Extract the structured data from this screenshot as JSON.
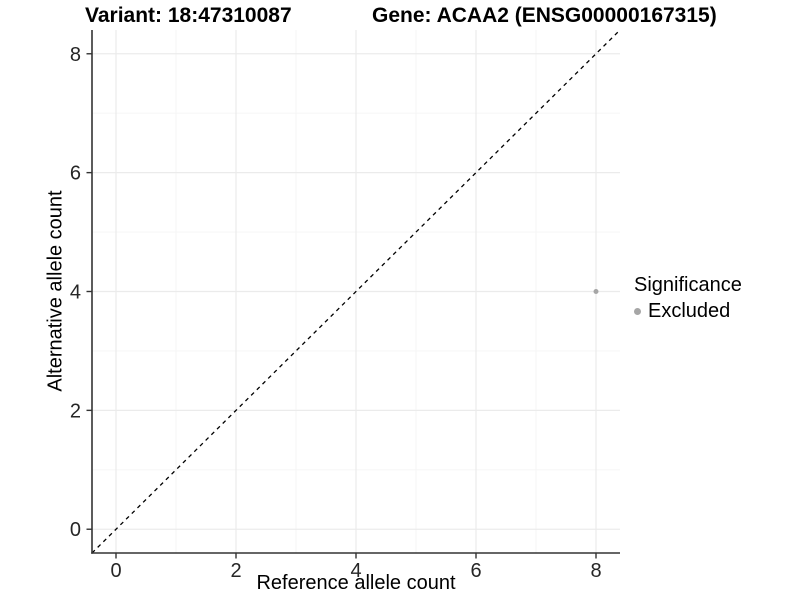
{
  "chart_data": {
    "type": "scatter",
    "title_left": "Variant: 18:47310087",
    "title_right": "Gene: ACAA2 (ENSG00000167315)",
    "xlabel": "Reference allele count",
    "ylabel": "Alternative allele count",
    "xlim": [
      -0.4,
      8.4
    ],
    "ylim": [
      -0.4,
      8.4
    ],
    "x_ticks": [
      0,
      2,
      4,
      6,
      8
    ],
    "y_ticks": [
      0,
      2,
      4,
      6,
      8
    ],
    "x_minor_ticks": [
      1,
      3,
      5,
      7
    ],
    "y_minor_ticks": [
      1,
      3,
      5,
      7
    ],
    "grid": true,
    "series": [
      {
        "name": "Excluded",
        "color": "#a6a6a6",
        "points": [
          {
            "x": 8,
            "y": 4
          }
        ]
      }
    ],
    "reference_line": {
      "kind": "identity",
      "style": "dashed",
      "color": "#000000",
      "from": [
        -0.4,
        -0.4
      ],
      "to": [
        8.4,
        8.4
      ]
    },
    "legend": {
      "title": "Significance",
      "position": "right",
      "entries": [
        {
          "label": "Excluded",
          "color": "#a6a6a6"
        }
      ]
    },
    "style": {
      "background": "#ffffff",
      "grid_major": "#ebebeb",
      "grid_minor": "#f5f5f5",
      "axis_line": "#333333",
      "tick_color": "#333333",
      "tick_label_color": "#262626",
      "point_radius": 2.5,
      "title_color": "#000000"
    }
  }
}
